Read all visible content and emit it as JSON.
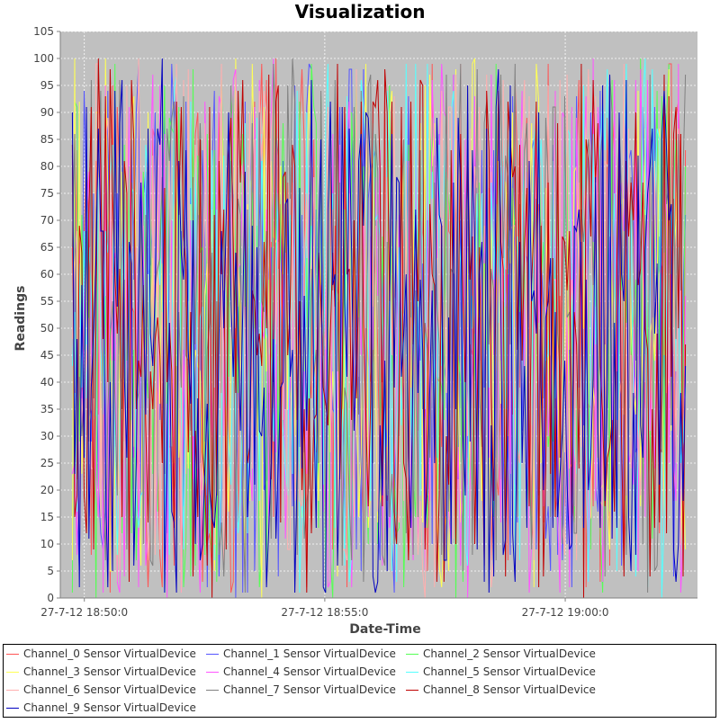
{
  "chart_data": {
    "type": "line",
    "title": "Visualization",
    "xlabel": "Date-Time",
    "ylabel": "Readings",
    "ylim": [
      0,
      105
    ],
    "yticks": [
      0,
      5,
      10,
      15,
      20,
      25,
      30,
      35,
      40,
      45,
      50,
      55,
      60,
      65,
      70,
      75,
      80,
      85,
      90,
      95,
      100,
      105
    ],
    "xlim": [
      "2012-07-27T18:49:30",
      "2012-07-27T19:02:45"
    ],
    "xticks": [
      {
        "t": "2012-07-27T18:50:00",
        "label": "27-7-12 18:50:0"
      },
      {
        "t": "2012-07-27T18:55:00",
        "label": "27-7-12 18:55:0"
      },
      {
        "t": "2012-07-27T19:00:00",
        "label": "27-7-12 19:00:0"
      }
    ],
    "x_start": "2012-07-27T18:49:45",
    "x_end": "2012-07-27T19:02:30",
    "grid": true,
    "plot_background": "#c0c0c0",
    "legend_position": "bottom",
    "series": [
      {
        "name": "Channel_0 Sensor VirtualDevice",
        "color": "#ff5555",
        "seed": 11
      },
      {
        "name": "Channel_1 Sensor VirtualDevice",
        "color": "#5555ff",
        "seed": 23
      },
      {
        "name": "Channel_2 Sensor VirtualDevice",
        "color": "#55ff55",
        "seed": 37
      },
      {
        "name": "Channel_3 Sensor VirtualDevice",
        "color": "#ffff55",
        "seed": 41
      },
      {
        "name": "Channel_4 Sensor VirtualDevice",
        "color": "#ff55ff",
        "seed": 53
      },
      {
        "name": "Channel_5 Sensor VirtualDevice",
        "color": "#55ffff",
        "seed": 67
      },
      {
        "name": "Channel_6 Sensor VirtualDevice",
        "color": "#ffafaf",
        "seed": 71
      },
      {
        "name": "Channel_7 Sensor VirtualDevice",
        "color": "#808080",
        "seed": 83
      },
      {
        "name": "Channel_8 Sensor VirtualDevice",
        "color": "#c00000",
        "seed": 97
      },
      {
        "name": "Channel_9 Sensor VirtualDevice",
        "color": "#0000c0",
        "seed": 101
      }
    ]
  }
}
